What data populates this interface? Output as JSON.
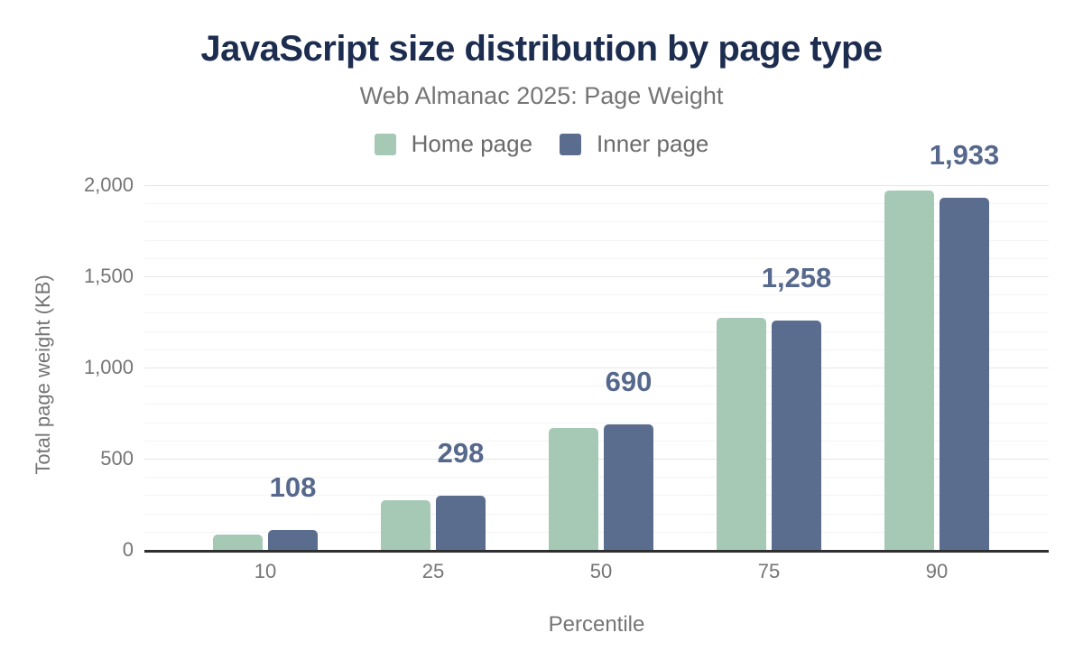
{
  "chart_data": {
    "type": "bar",
    "title": "JavaScript size distribution by page type",
    "subtitle": "Web Almanac 2025: Page Weight",
    "categories": [
      "10",
      "25",
      "50",
      "75",
      "90"
    ],
    "series": [
      {
        "name": "Home page",
        "color": "#a5c9b5",
        "values": [
          85,
          270,
          668,
          1270,
          1972
        ]
      },
      {
        "name": "Inner page",
        "color": "#5b6d8f",
        "values": [
          108,
          298,
          690,
          1258,
          1933
        ],
        "data_labels": [
          "108",
          "298",
          "690",
          "1,258",
          "1,933"
        ]
      }
    ],
    "xlabel": "Percentile",
    "ylabel": "Total page weight (KB)",
    "ylim": [
      0,
      2000
    ],
    "yticks": [
      0,
      500,
      1000,
      1500,
      2000
    ],
    "ytick_labels": [
      "0",
      "500",
      "1,000",
      "1,500",
      "2,000"
    ],
    "ytick_step_major": 500,
    "ytick_step_minor": 100,
    "grid": "horizontal",
    "legend_position": "top",
    "annotation_color": "#56688c"
  },
  "colors": {
    "background": "#ffffff",
    "title_text": "#1d2d4f",
    "muted_text": "#757575",
    "legend_text": "#6b6b6b",
    "axis_line": "#2f2f2f",
    "grid_major": "#e6e6e6",
    "grid_minor": "#f4f4f4",
    "home_page_bar": "#a5c9b5",
    "inner_page_bar": "#5b6d8f",
    "data_label": "#56688c"
  }
}
